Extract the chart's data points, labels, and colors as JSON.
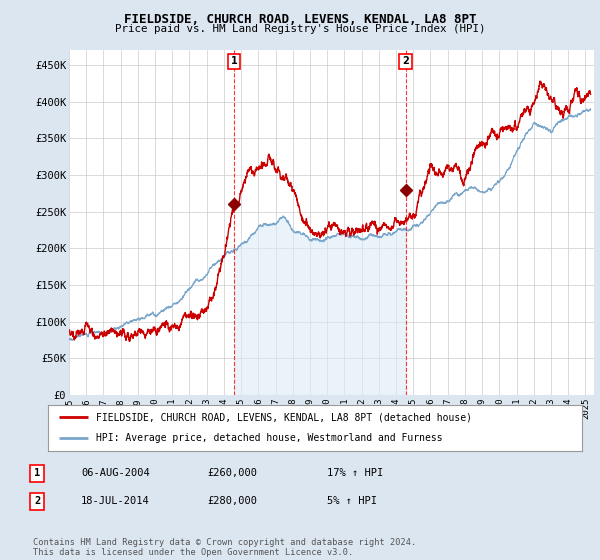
{
  "title": "FIELDSIDE, CHURCH ROAD, LEVENS, KENDAL, LA8 8PT",
  "subtitle": "Price paid vs. HM Land Registry's House Price Index (HPI)",
  "ylabel_ticks": [
    "£0",
    "£50K",
    "£100K",
    "£150K",
    "£200K",
    "£250K",
    "£300K",
    "£350K",
    "£400K",
    "£450K"
  ],
  "ytick_values": [
    0,
    50000,
    100000,
    150000,
    200000,
    250000,
    300000,
    350000,
    400000,
    450000
  ],
  "ylim": [
    0,
    470000
  ],
  "xlim_start": 1995.0,
  "xlim_end": 2025.5,
  "sale1_x": 2004.6,
  "sale1_y": 260000,
  "sale1_label": "1",
  "sale2_x": 2014.55,
  "sale2_y": 280000,
  "sale2_label": "2",
  "red_line_color": "#cc0000",
  "blue_line_color": "#7aa6cc",
  "blue_fill_color": "#daeaf7",
  "background_color": "#dce6f1",
  "grid_color": "#cccccc",
  "legend_label_red": "FIELDSIDE, CHURCH ROAD, LEVENS, KENDAL, LA8 8PT (detached house)",
  "legend_label_blue": "HPI: Average price, detached house, Westmorland and Furness",
  "table_rows": [
    [
      "1",
      "06-AUG-2004",
      "£260,000",
      "17% ↑ HPI"
    ],
    [
      "2",
      "18-JUL-2014",
      "£280,000",
      "5% ↑ HPI"
    ]
  ],
  "footnote": "Contains HM Land Registry data © Crown copyright and database right 2024.\nThis data is licensed under the Open Government Licence v3.0.",
  "x_tick_years": [
    1995,
    1996,
    1997,
    1998,
    1999,
    2000,
    2001,
    2002,
    2003,
    2004,
    2005,
    2006,
    2007,
    2008,
    2009,
    2010,
    2011,
    2012,
    2013,
    2014,
    2015,
    2016,
    2017,
    2018,
    2019,
    2020,
    2021,
    2022,
    2023,
    2024,
    2025
  ]
}
